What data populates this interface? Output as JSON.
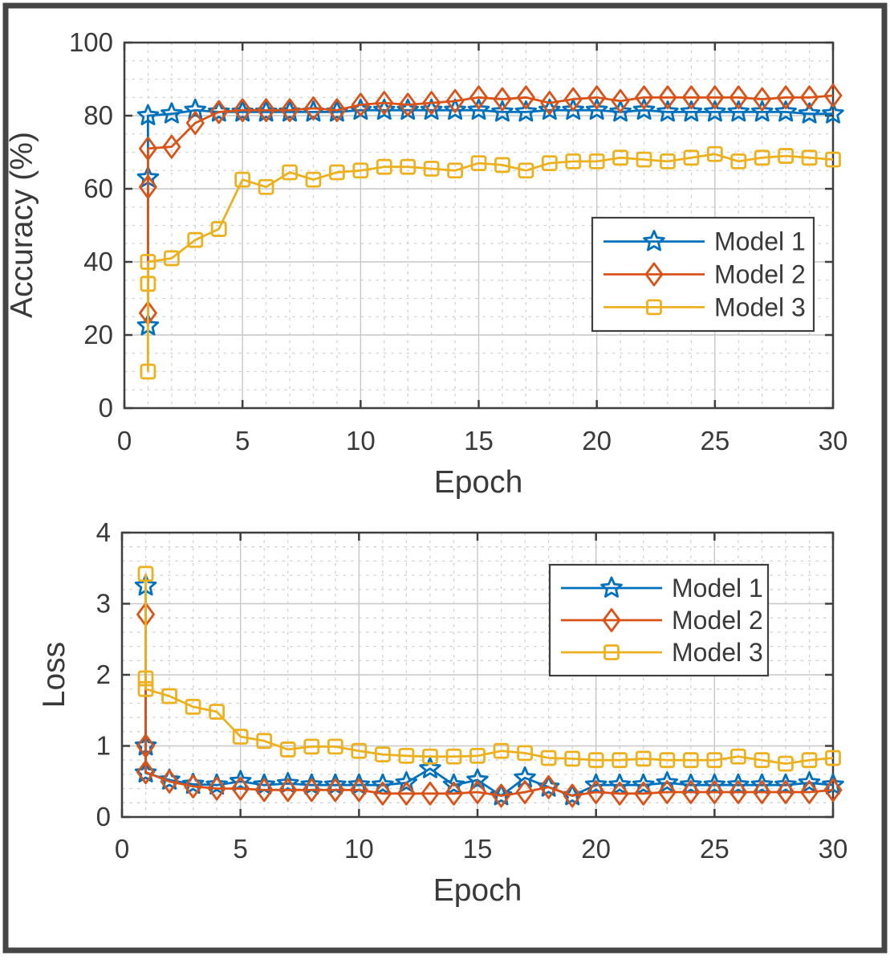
{
  "figure": {
    "background": "#ffffff",
    "border_color": "#454545",
    "axes_color": "#3f3f3f",
    "text_color": "#3a3a3a",
    "grid_major_color": "#c7c7c7",
    "grid_minor_color": "#d2d2d2"
  },
  "legend": {
    "entries": [
      "Model 1",
      "Model 2",
      "Model 3"
    ]
  },
  "chart_data": [
    {
      "type": "line",
      "title": "",
      "xlabel": "Epoch",
      "ylabel": "Accuracy (%)",
      "xlim": [
        0,
        30
      ],
      "ylim": [
        0,
        100
      ],
      "xticks": [
        0,
        5,
        10,
        15,
        20,
        25,
        30
      ],
      "yticks": [
        0,
        20,
        40,
        60,
        80,
        100
      ],
      "minor_x_step": 1,
      "minor_y_step": 5,
      "grid": "major+minor",
      "legend_position": "right-middle",
      "series": [
        {
          "name": "Model 1",
          "color": "#0072BD",
          "marker": "pentagram",
          "points": [
            [
              1,
              22.5
            ],
            [
              1,
              63
            ],
            [
              1,
              80
            ],
            [
              2,
              80.5
            ],
            [
              3,
              81.5
            ],
            [
              4,
              81
            ],
            [
              5,
              81
            ],
            [
              6,
              81
            ],
            [
              7,
              81
            ],
            [
              8,
              81
            ],
            [
              9,
              81
            ],
            [
              10,
              81.5
            ],
            [
              11,
              81.5
            ],
            [
              12,
              81.5
            ],
            [
              13,
              81.5
            ],
            [
              14,
              81.5
            ],
            [
              15,
              81.5
            ],
            [
              16,
              81
            ],
            [
              17,
              81
            ],
            [
              18,
              81.5
            ],
            [
              19,
              81.5
            ],
            [
              20,
              81.5
            ],
            [
              21,
              81
            ],
            [
              22,
              81.5
            ],
            [
              23,
              81
            ],
            [
              24,
              81
            ],
            [
              25,
              81
            ],
            [
              26,
              81
            ],
            [
              27,
              81
            ],
            [
              28,
              81
            ],
            [
              29,
              80.5
            ],
            [
              30,
              80.5
            ]
          ]
        },
        {
          "name": "Model 2",
          "color": "#D95319",
          "marker": "diamond",
          "points": [
            [
              1,
              26
            ],
            [
              1,
              60.5
            ],
            [
              1,
              71
            ],
            [
              2,
              71.5
            ],
            [
              3,
              78
            ],
            [
              4,
              81
            ],
            [
              5,
              81.5
            ],
            [
              6,
              81.5
            ],
            [
              7,
              81.5
            ],
            [
              8,
              82
            ],
            [
              9,
              81.5
            ],
            [
              10,
              83
            ],
            [
              11,
              83.5
            ],
            [
              12,
              83
            ],
            [
              13,
              83.5
            ],
            [
              14,
              84
            ],
            [
              15,
              85
            ],
            [
              16,
              84.5
            ],
            [
              17,
              85
            ],
            [
              18,
              83.5
            ],
            [
              19,
              84.5
            ],
            [
              20,
              85
            ],
            [
              21,
              84
            ],
            [
              22,
              85
            ],
            [
              23,
              85
            ],
            [
              24,
              85
            ],
            [
              25,
              85
            ],
            [
              26,
              85
            ],
            [
              27,
              84.5
            ],
            [
              28,
              85
            ],
            [
              29,
              85
            ],
            [
              30,
              85.5
            ]
          ]
        },
        {
          "name": "Model 3",
          "color": "#EDB120",
          "marker": "square",
          "points": [
            [
              1,
              10
            ],
            [
              1,
              34
            ],
            [
              1,
              40
            ],
            [
              2,
              41
            ],
            [
              3,
              46
            ],
            [
              4,
              49
            ],
            [
              5,
              62.5
            ],
            [
              6,
              60.5
            ],
            [
              7,
              64.5
            ],
            [
              8,
              62.5
            ],
            [
              9,
              64.5
            ],
            [
              10,
              65
            ],
            [
              11,
              66
            ],
            [
              12,
              66
            ],
            [
              13,
              65.5
            ],
            [
              14,
              65
            ],
            [
              15,
              67
            ],
            [
              16,
              66.5
            ],
            [
              17,
              65
            ],
            [
              18,
              67
            ],
            [
              19,
              67.5
            ],
            [
              20,
              67.5
            ],
            [
              21,
              68.5
            ],
            [
              22,
              68
            ],
            [
              23,
              67.5
            ],
            [
              24,
              68.5
            ],
            [
              25,
              69.5
            ],
            [
              26,
              67.5
            ],
            [
              27,
              68.5
            ],
            [
              28,
              69
            ],
            [
              29,
              68.5
            ],
            [
              30,
              68
            ]
          ]
        }
      ]
    },
    {
      "type": "line",
      "title": "",
      "xlabel": "Epoch",
      "ylabel": "Loss",
      "xlim": [
        0,
        30
      ],
      "ylim": [
        0,
        4
      ],
      "xticks": [
        0,
        5,
        10,
        15,
        20,
        25,
        30
      ],
      "yticks": [
        0,
        1,
        2,
        3,
        4
      ],
      "minor_x_step": 1,
      "minor_y_step": 0.2,
      "grid": "major+minor",
      "legend_position": "right-top",
      "series": [
        {
          "name": "Model 1",
          "color": "#0072BD",
          "marker": "pentagram",
          "points": [
            [
              1,
              3.25
            ],
            [
              1,
              1.0
            ],
            [
              1,
              0.62
            ],
            [
              2,
              0.52
            ],
            [
              3,
              0.46
            ],
            [
              4,
              0.45
            ],
            [
              5,
              0.5
            ],
            [
              6,
              0.45
            ],
            [
              7,
              0.47
            ],
            [
              8,
              0.45
            ],
            [
              9,
              0.45
            ],
            [
              10,
              0.45
            ],
            [
              11,
              0.45
            ],
            [
              12,
              0.48
            ],
            [
              13,
              0.68
            ],
            [
              14,
              0.45
            ],
            [
              15,
              0.52
            ],
            [
              16,
              0.3
            ],
            [
              17,
              0.55
            ],
            [
              18,
              0.42
            ],
            [
              19,
              0.3
            ],
            [
              20,
              0.45
            ],
            [
              21,
              0.45
            ],
            [
              22,
              0.45
            ],
            [
              23,
              0.48
            ],
            [
              24,
              0.45
            ],
            [
              25,
              0.45
            ],
            [
              26,
              0.45
            ],
            [
              27,
              0.45
            ],
            [
              28,
              0.45
            ],
            [
              29,
              0.48
            ],
            [
              30,
              0.45
            ]
          ]
        },
        {
          "name": "Model 2",
          "color": "#D95319",
          "marker": "diamond",
          "points": [
            [
              1,
              2.85
            ],
            [
              1,
              1.0
            ],
            [
              1,
              0.63
            ],
            [
              2,
              0.5
            ],
            [
              3,
              0.43
            ],
            [
              4,
              0.4
            ],
            [
              5,
              0.4
            ],
            [
              6,
              0.38
            ],
            [
              7,
              0.38
            ],
            [
              8,
              0.38
            ],
            [
              9,
              0.38
            ],
            [
              10,
              0.38
            ],
            [
              11,
              0.33
            ],
            [
              12,
              0.33
            ],
            [
              13,
              0.33
            ],
            [
              14,
              0.33
            ],
            [
              15,
              0.35
            ],
            [
              16,
              0.3
            ],
            [
              17,
              0.35
            ],
            [
              18,
              0.42
            ],
            [
              19,
              0.3
            ],
            [
              20,
              0.35
            ],
            [
              21,
              0.33
            ],
            [
              22,
              0.33
            ],
            [
              23,
              0.35
            ],
            [
              24,
              0.35
            ],
            [
              25,
              0.35
            ],
            [
              26,
              0.35
            ],
            [
              27,
              0.35
            ],
            [
              28,
              0.35
            ],
            [
              29,
              0.35
            ],
            [
              30,
              0.38
            ]
          ]
        },
        {
          "name": "Model 3",
          "color": "#EDB120",
          "marker": "square",
          "points": [
            [
              1,
              3.42
            ],
            [
              1,
              1.95
            ],
            [
              1,
              1.8
            ],
            [
              2,
              1.7
            ],
            [
              3,
              1.55
            ],
            [
              4,
              1.48
            ],
            [
              5,
              1.13
            ],
            [
              6,
              1.07
            ],
            [
              7,
              0.95
            ],
            [
              8,
              0.99
            ],
            [
              9,
              0.99
            ],
            [
              10,
              0.93
            ],
            [
              11,
              0.88
            ],
            [
              12,
              0.86
            ],
            [
              13,
              0.85
            ],
            [
              14,
              0.85
            ],
            [
              15,
              0.86
            ],
            [
              16,
              0.93
            ],
            [
              17,
              0.9
            ],
            [
              18,
              0.83
            ],
            [
              19,
              0.82
            ],
            [
              20,
              0.8
            ],
            [
              21,
              0.8
            ],
            [
              22,
              0.82
            ],
            [
              23,
              0.8
            ],
            [
              24,
              0.8
            ],
            [
              25,
              0.8
            ],
            [
              26,
              0.85
            ],
            [
              27,
              0.8
            ],
            [
              28,
              0.75
            ],
            [
              29,
              0.8
            ],
            [
              30,
              0.83
            ]
          ]
        }
      ]
    }
  ]
}
